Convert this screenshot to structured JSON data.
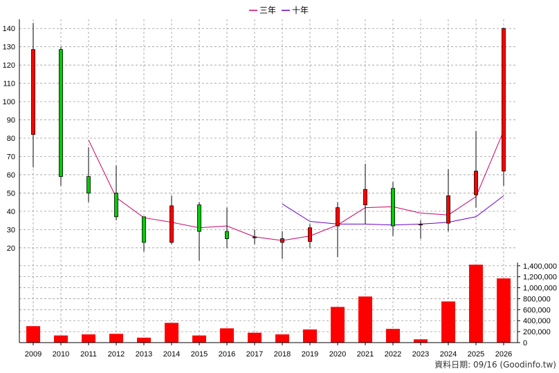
{
  "chart_data": {
    "type": "candlestick",
    "categories": [
      "2009",
      "2010",
      "2011",
      "2012",
      "2013",
      "2014",
      "2015",
      "2016",
      "2017",
      "2018",
      "2019",
      "2020",
      "2021",
      "2022",
      "2023",
      "2024",
      "2025",
      "2026"
    ],
    "ohlc": [
      {
        "open": 82,
        "high": 143,
        "low": 64,
        "close": 128.5
      },
      {
        "open": 128.5,
        "high": 130,
        "low": 54,
        "close": 59
      },
      {
        "open": 59,
        "high": 75,
        "low": 45,
        "close": 50
      },
      {
        "open": 50,
        "high": 65,
        "low": 35,
        "close": 37
      },
      {
        "open": 37,
        "high": 37,
        "low": 18,
        "close": 23
      },
      {
        "open": 23,
        "high": 48.5,
        "low": 22,
        "close": 43
      },
      {
        "open": 43.5,
        "high": 45,
        "low": 13,
        "close": 29
      },
      {
        "open": 29,
        "high": 42,
        "low": 20,
        "close": 25
      },
      {
        "open": 25.5,
        "high": 30,
        "low": 22,
        "close": 26
      },
      {
        "open": 23,
        "high": 29,
        "low": 14,
        "close": 25
      },
      {
        "open": 23.5,
        "high": 33,
        "low": 20,
        "close": 31
      },
      {
        "open": 32,
        "high": 45,
        "low": 15,
        "close": 42
      },
      {
        "open": 43.5,
        "high": 66,
        "low": 33,
        "close": 52
      },
      {
        "open": 52.5,
        "high": 56,
        "low": 26.5,
        "close": 32
      },
      {
        "open": 32.5,
        "high": 35,
        "low": 25,
        "close": 33
      },
      {
        "open": 33.5,
        "high": 63,
        "low": 29,
        "close": 48.5
      },
      {
        "open": 49,
        "high": 84,
        "low": 42,
        "close": 62
      },
      {
        "open": 62,
        "high": 140.5,
        "low": 54,
        "close": 140
      }
    ],
    "series": [
      {
        "name": "三年",
        "color": "#cc0066",
        "values": [
          null,
          null,
          79,
          47.5,
          36.5,
          34,
          31,
          32,
          26,
          24,
          26.5,
          32.5,
          42,
          42.5,
          39,
          38,
          48,
          84
        ]
      },
      {
        "name": "十年",
        "color": "#6600cc",
        "values": [
          null,
          null,
          null,
          null,
          null,
          null,
          null,
          null,
          null,
          44,
          34.5,
          33,
          33,
          32.5,
          33,
          34,
          37,
          48.5
        ]
      }
    ],
    "volume": [
      300000,
      130000,
      150000,
      160000,
      90000,
      360000,
      130000,
      260000,
      180000,
      150000,
      240000,
      650000,
      840000,
      250000,
      60000,
      750000,
      1420000,
      1170000
    ],
    "price_ylim": [
      12,
      145
    ],
    "price_ticks": [
      20,
      30,
      40,
      50,
      60,
      70,
      80,
      90,
      100,
      110,
      120,
      130,
      140
    ],
    "volume_ylim": [
      0,
      1460000
    ],
    "volume_ticks": [
      0,
      200000,
      400000,
      600000,
      800000,
      1000000,
      1200000,
      1400000
    ],
    "volume_tick_labels": [
      "0",
      "200,000",
      "400,000",
      "600,000",
      "800,000",
      "1,000,000",
      "1,200,000",
      "1,400,000"
    ],
    "grid": true,
    "legend_position": "top-center",
    "colors": {
      "up": "#ff0000",
      "down": "#00cc00",
      "volume": "#ff0000",
      "grid": "#999999"
    }
  },
  "legend": {
    "line1": "三年",
    "line2": "十年"
  },
  "source_text": "資料日期: 09/16  (Goodinfo.tw)"
}
